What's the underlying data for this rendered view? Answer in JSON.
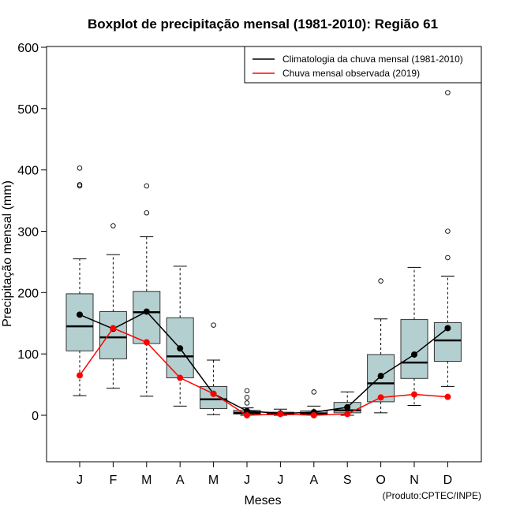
{
  "chart_data": {
    "type": "boxplot",
    "title": "Boxplot de precipitação mensal (1981-2010): Região 61",
    "xlabel": "Meses",
    "ylabel": "Precipitação mensal (mm)",
    "ylim": [
      -75,
      600
    ],
    "yticks": [
      0,
      100,
      200,
      300,
      400,
      500,
      600
    ],
    "categories": [
      "J",
      "F",
      "M",
      "A",
      "M",
      "J",
      "J",
      "A",
      "S",
      "O",
      "N",
      "D"
    ],
    "boxes": [
      {
        "min": 32,
        "q1": 105,
        "median": 145,
        "q3": 198,
        "max": 255,
        "outliers": [
          374,
          376,
          403
        ]
      },
      {
        "min": 44,
        "q1": 92,
        "median": 127,
        "q3": 169,
        "max": 262,
        "outliers": [
          309
        ]
      },
      {
        "min": 31,
        "q1": 117,
        "median": 168,
        "q3": 202,
        "max": 291,
        "outliers": [
          330,
          374
        ]
      },
      {
        "min": 15,
        "q1": 61,
        "median": 96,
        "q3": 159,
        "max": 243,
        "outliers": []
      },
      {
        "min": 1,
        "q1": 11,
        "median": 26,
        "q3": 47,
        "max": 90,
        "outliers": [
          147
        ]
      },
      {
        "min": 0,
        "q1": 2,
        "median": 4,
        "q3": 8,
        "max": 12,
        "outliers": [
          20,
          29,
          40
        ]
      },
      {
        "min": 0,
        "q1": 1,
        "median": 2,
        "q3": 5,
        "max": 10,
        "outliers": []
      },
      {
        "min": 0,
        "q1": 1,
        "median": 3,
        "q3": 7,
        "max": 15,
        "outliers": [
          38
        ]
      },
      {
        "min": 0,
        "q1": 4,
        "median": 8,
        "q3": 21,
        "max": 38,
        "outliers": []
      },
      {
        "min": 4,
        "q1": 22,
        "median": 52,
        "q3": 99,
        "max": 157,
        "outliers": [
          219
        ]
      },
      {
        "min": 16,
        "q1": 60,
        "median": 86,
        "q3": 156,
        "max": 241,
        "outliers": []
      },
      {
        "min": 47,
        "q1": 88,
        "median": 122,
        "q3": 151,
        "max": 227,
        "outliers": [
          257,
          300,
          526
        ]
      }
    ],
    "series": [
      {
        "name": "Climatologia da chuva mensal (1981-2010)",
        "color": "#000000",
        "values": [
          164,
          141,
          169,
          109,
          35,
          7,
          3,
          5,
          13,
          64,
          99,
          142
        ]
      },
      {
        "name": "Chuva mensal observada (2019)",
        "color": "#ff0000",
        "values": [
          65,
          142,
          119,
          61,
          35,
          0,
          2,
          0,
          2,
          29,
          34,
          30
        ]
      }
    ],
    "legend_position": "top-right",
    "box_color": "#b4cfcf"
  },
  "credit": "(Produto:CPTEC/INPE)"
}
